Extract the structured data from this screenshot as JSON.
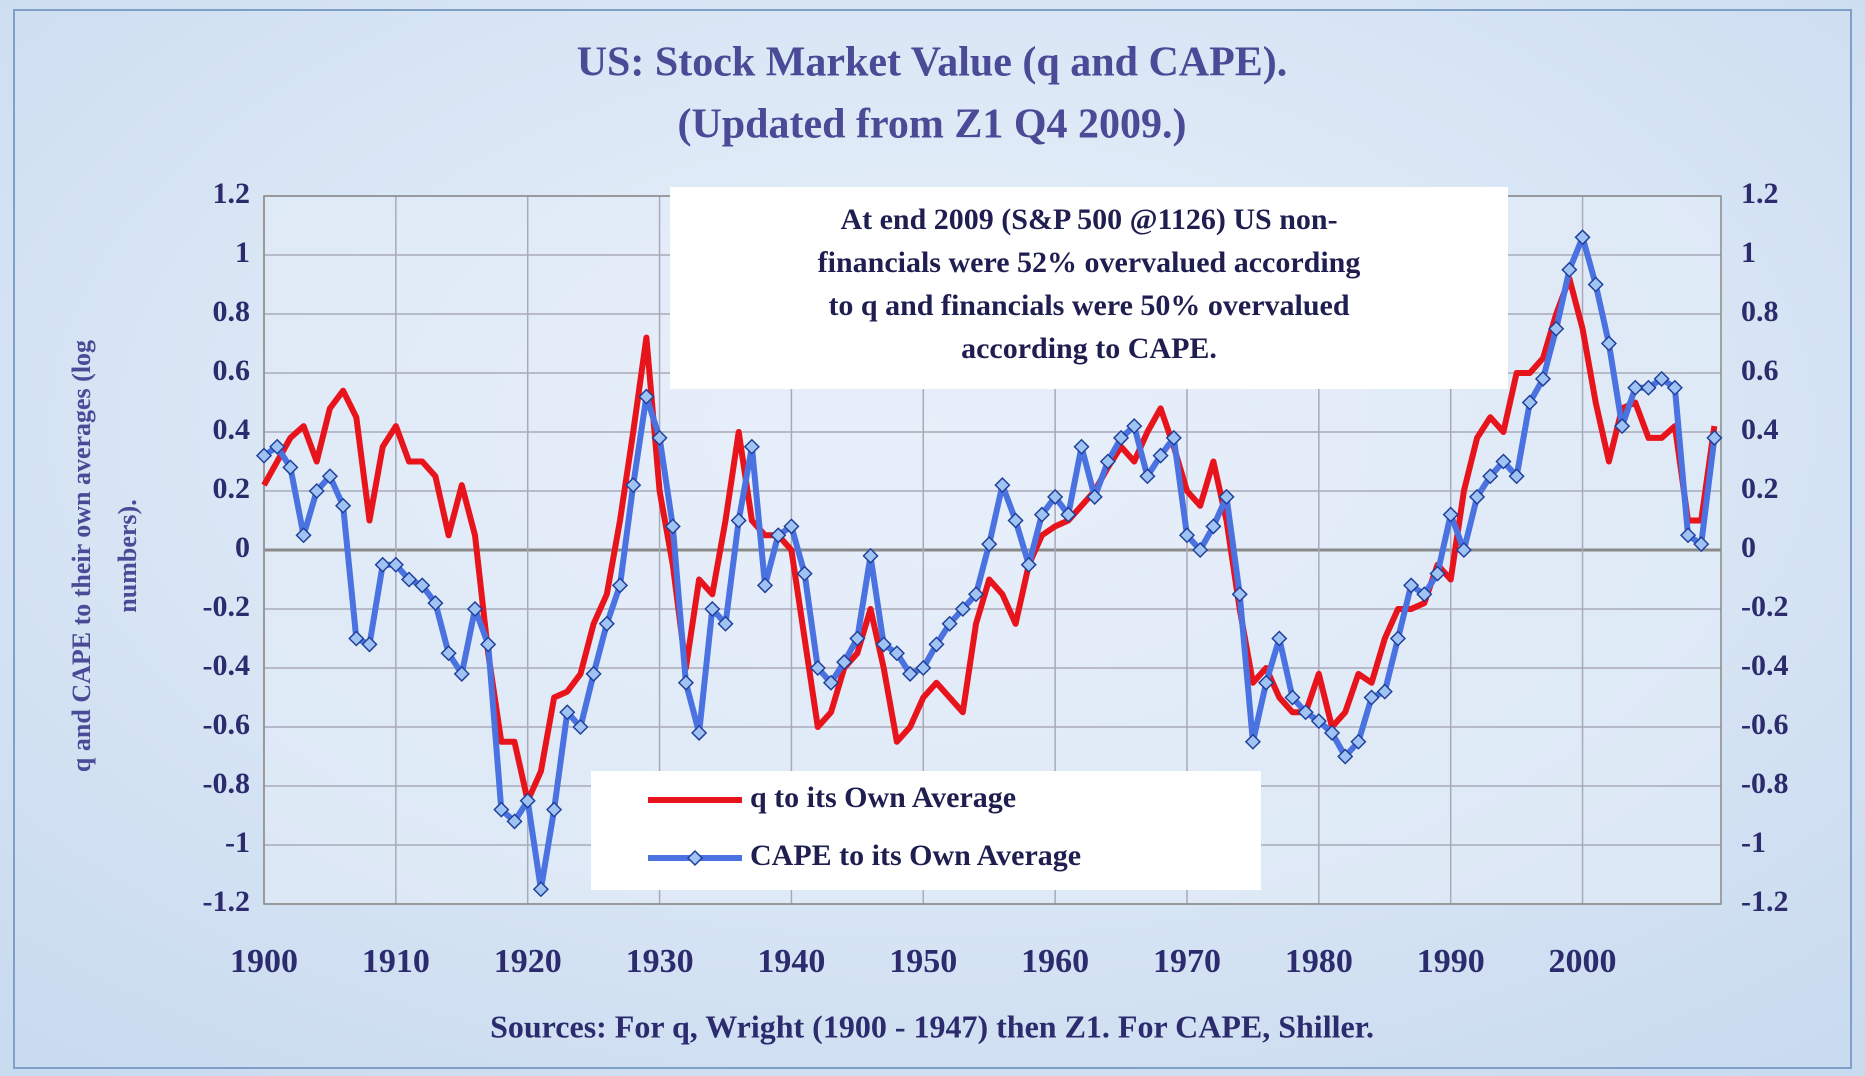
{
  "chart_data": {
    "type": "line",
    "title": "US: Stock Market Value (q  and CAPE).",
    "subtitle": "(Updated from Z1 Q4 2009.)",
    "annotation": [
      "At end 2009 (S&P 500 @1126) US non-",
      "financials were 52% overvalued according",
      "to q  and financials were 50% overvalued",
      "according to CAPE."
    ],
    "y_label": [
      "q and CAPE to their own averages (log",
      "numbers)."
    ],
    "source": "Sources: For q,  Wright (1900 - 1947) then Z1. For CAPE, Shiller.",
    "x": [
      1900,
      1901,
      1902,
      1903,
      1904,
      1905,
      1906,
      1907,
      1908,
      1909,
      1910,
      1911,
      1912,
      1913,
      1914,
      1915,
      1916,
      1917,
      1918,
      1919,
      1920,
      1921,
      1922,
      1923,
      1924,
      1925,
      1926,
      1927,
      1928,
      1929,
      1930,
      1931,
      1932,
      1933,
      1934,
      1935,
      1936,
      1937,
      1938,
      1939,
      1940,
      1941,
      1942,
      1943,
      1944,
      1945,
      1946,
      1947,
      1948,
      1949,
      1950,
      1951,
      1952,
      1953,
      1954,
      1955,
      1956,
      1957,
      1958,
      1959,
      1960,
      1961,
      1962,
      1963,
      1964,
      1965,
      1966,
      1967,
      1968,
      1969,
      1970,
      1971,
      1972,
      1973,
      1974,
      1975,
      1976,
      1977,
      1978,
      1979,
      1980,
      1981,
      1982,
      1983,
      1984,
      1985,
      1986,
      1987,
      1988,
      1989,
      1990,
      1991,
      1992,
      1993,
      1994,
      1995,
      1996,
      1997,
      1998,
      1999,
      2000,
      2001,
      2002,
      2003,
      2004,
      2005,
      2006,
      2007,
      2008,
      2009,
      2010
    ],
    "series": [
      {
        "name": "q to its Own Average",
        "color": "#e8141c",
        "markers": false,
        "values": [
          0.22,
          0.3,
          0.38,
          0.42,
          0.3,
          0.48,
          0.54,
          0.45,
          0.1,
          0.35,
          0.42,
          0.3,
          0.3,
          0.25,
          0.05,
          0.22,
          0.05,
          -0.35,
          -0.65,
          -0.65,
          -0.85,
          -0.75,
          -0.5,
          -0.48,
          -0.42,
          -0.25,
          -0.15,
          0.1,
          0.4,
          0.72,
          0.2,
          -0.05,
          -0.4,
          -0.1,
          -0.15,
          0.1,
          0.4,
          0.1,
          0.05,
          0.05,
          0,
          -0.3,
          -0.6,
          -0.55,
          -0.4,
          -0.35,
          -0.2,
          -0.4,
          -0.65,
          -0.6,
          -0.5,
          -0.45,
          -0.5,
          -0.55,
          -0.25,
          -0.1,
          -0.15,
          -0.25,
          -0.05,
          0.05,
          0.08,
          0.1,
          0.15,
          0.2,
          0.28,
          0.35,
          0.3,
          0.4,
          0.48,
          0.35,
          0.2,
          0.15,
          0.3,
          0.1,
          -0.2,
          -0.45,
          -0.4,
          -0.5,
          -0.55,
          -0.55,
          -0.42,
          -0.6,
          -0.55,
          -0.42,
          -0.45,
          -0.3,
          -0.2,
          -0.2,
          -0.18,
          -0.05,
          -0.1,
          0.2,
          0.38,
          0.45,
          0.4,
          0.6,
          0.6,
          0.65,
          0.8,
          0.92,
          0.75,
          0.5,
          0.3,
          0.48,
          0.5,
          0.38,
          0.38,
          0.42,
          0.1,
          0.1,
          0.42
        ]
      },
      {
        "name": "CAPE to its Own Average",
        "color": "#4a72e0",
        "markers": true,
        "values": [
          0.32,
          0.35,
          0.28,
          0.05,
          0.2,
          0.25,
          0.15,
          -0.3,
          -0.32,
          -0.05,
          -0.05,
          -0.1,
          -0.12,
          -0.18,
          -0.35,
          -0.42,
          -0.2,
          -0.32,
          -0.88,
          -0.92,
          -0.85,
          -1.15,
          -0.88,
          -0.55,
          -0.6,
          -0.42,
          -0.25,
          -0.12,
          0.22,
          0.52,
          0.38,
          0.08,
          -0.45,
          -0.62,
          -0.2,
          -0.25,
          0.1,
          0.35,
          -0.12,
          0.05,
          0.08,
          -0.08,
          -0.4,
          -0.45,
          -0.38,
          -0.3,
          -0.02,
          -0.32,
          -0.35,
          -0.42,
          -0.4,
          -0.32,
          -0.25,
          -0.2,
          -0.15,
          0.02,
          0.22,
          0.1,
          -0.05,
          0.12,
          0.18,
          0.12,
          0.35,
          0.18,
          0.3,
          0.38,
          0.42,
          0.25,
          0.32,
          0.38,
          0.05,
          0,
          0.08,
          0.18,
          -0.15,
          -0.65,
          -0.45,
          -0.3,
          -0.5,
          -0.55,
          -0.58,
          -0.62,
          -0.7,
          -0.65,
          -0.5,
          -0.48,
          -0.3,
          -0.12,
          -0.15,
          -0.08,
          0.12,
          0,
          0.18,
          0.25,
          0.3,
          0.25,
          0.5,
          0.58,
          0.75,
          0.95,
          1.06,
          0.9,
          0.7,
          0.42,
          0.55,
          0.55,
          0.58,
          0.55,
          0.05,
          0.02,
          0.38
        ]
      }
    ],
    "xlim": [
      1900,
      2010.5
    ],
    "xticks": [
      1900,
      1910,
      1920,
      1930,
      1940,
      1950,
      1960,
      1970,
      1980,
      1990,
      2000
    ],
    "ylim": [
      -1.2,
      1.2
    ],
    "yticks": [
      1.2,
      1,
      0.8,
      0.6,
      0.4,
      0.2,
      0,
      -0.2,
      -0.4,
      -0.6,
      -0.8,
      -1,
      -1.2
    ],
    "grid": true
  }
}
